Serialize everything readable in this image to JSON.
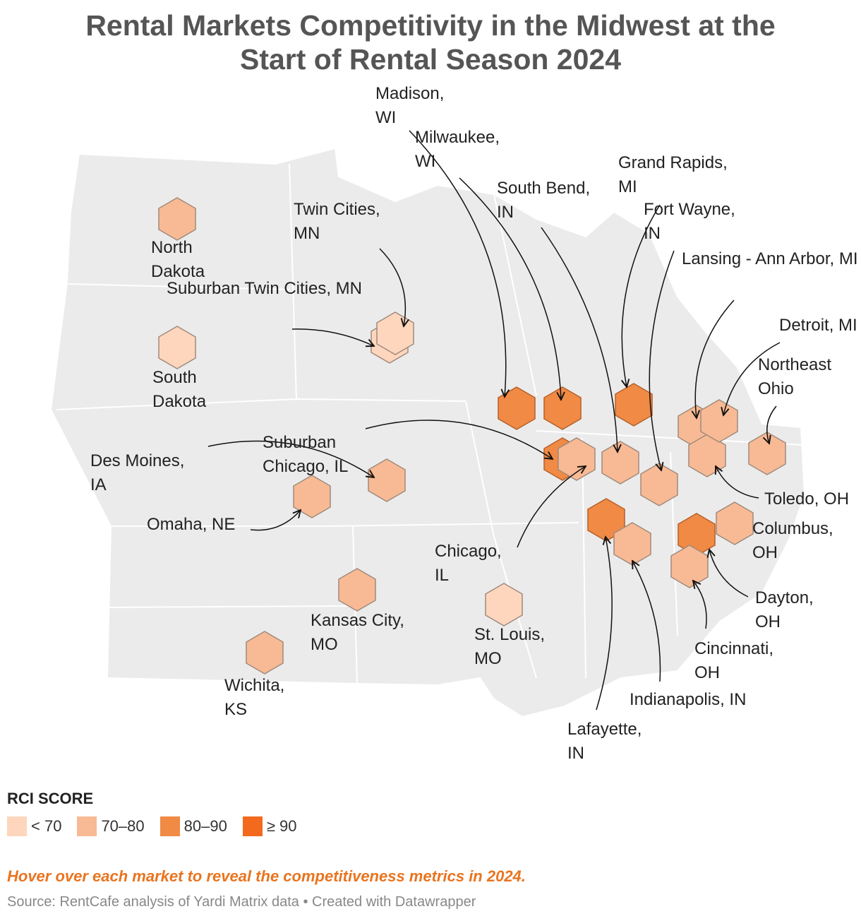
{
  "title": "Rental Markets Competitivity in the Midwest at the Start of Rental Season 2024",
  "markets": [
    {
      "label": "North Dakota",
      "category": "70–80"
    },
    {
      "label": "South Dakota",
      "category": "< 70"
    },
    {
      "label": "Suburban Twin Cities, MN",
      "category": "< 70"
    },
    {
      "label": "Twin Cities, MN",
      "category": "< 70"
    },
    {
      "label": "Madison, WI",
      "category": "80–90"
    },
    {
      "label": "Milwaukee, WI",
      "category": "80–90"
    },
    {
      "label": "Grand Rapids, MI",
      "category": "80–90"
    },
    {
      "label": "Suburban Chicago, IL",
      "category": "80–90"
    },
    {
      "label": "Chicago, IL",
      "category": "70–80"
    },
    {
      "label": "South Bend, IN",
      "category": "70–80"
    },
    {
      "label": "Fort Wayne, IN",
      "category": "70–80"
    },
    {
      "label": "Lansing - Ann Arbor, MI",
      "category": "70–80"
    },
    {
      "label": "Toledo, OH",
      "category": "70–80"
    },
    {
      "label": "Detroit, MI",
      "category": "70–80"
    },
    {
      "label": "Northeast Ohio",
      "category": "70–80"
    },
    {
      "label": "Columbus, OH",
      "category": "70–80"
    },
    {
      "label": "Dayton, OH",
      "category": "80–90"
    },
    {
      "label": "Cincinnati, OH",
      "category": "70–80"
    },
    {
      "label": "Lafayette, IN",
      "category": "80–90"
    },
    {
      "label": "Indianapolis, IN",
      "category": "70–80"
    },
    {
      "label": "Des Moines, IA",
      "category": "70–80"
    },
    {
      "label": "Omaha, NE",
      "category": "70–80"
    },
    {
      "label": "Kansas City, MO",
      "category": "70–80"
    },
    {
      "label": "St. Louis, MO",
      "category": "< 70"
    },
    {
      "label": "Wichita, KS",
      "category": "70–80"
    }
  ],
  "legend": {
    "title": "RCI SCORE",
    "items": [
      {
        "label": "< 70",
        "color": "#fdd6bd"
      },
      {
        "label": "70–80",
        "color": "#f8ba94"
      },
      {
        "label": "80–90",
        "color": "#f08a45"
      },
      {
        "label": "≥ 90",
        "color": "#f36a1f"
      }
    ]
  },
  "note": "Hover over each market to reveal the competitiveness metrics in 2024.",
  "source": "Source: RentCafe analysis of Yardi Matrix data • Created with Datawrapper"
}
